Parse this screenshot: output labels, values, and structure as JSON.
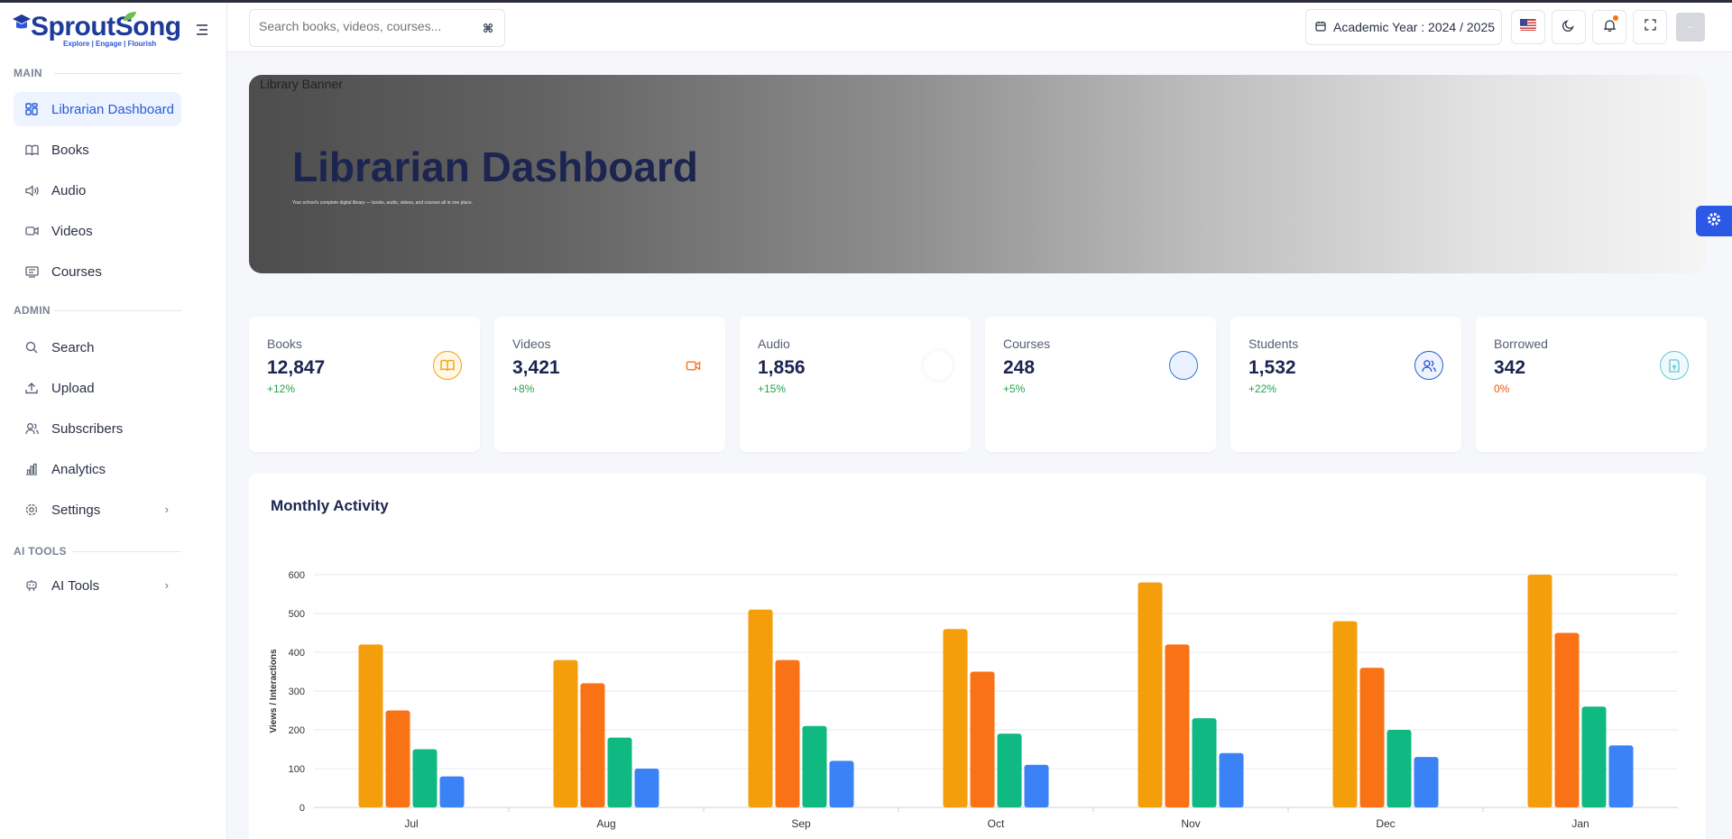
{
  "brand": {
    "name": "SproutSong",
    "tagline": "Explore | Engage | Flourish"
  },
  "sidebar": {
    "sections": [
      {
        "label": "MAIN"
      },
      {
        "label": "ADMIN"
      },
      {
        "label": "AI TOOLS"
      }
    ],
    "items": [
      {
        "label": "Librarian Dashboard",
        "icon": "dashboard-icon"
      },
      {
        "label": "Books",
        "icon": "book-icon"
      },
      {
        "label": "Audio",
        "icon": "audio-icon"
      },
      {
        "label": "Videos",
        "icon": "video-icon"
      },
      {
        "label": "Courses",
        "icon": "courses-icon"
      },
      {
        "label": "Search",
        "icon": "search-icon"
      },
      {
        "label": "Upload",
        "icon": "upload-icon"
      },
      {
        "label": "Subscribers",
        "icon": "users-icon"
      },
      {
        "label": "Analytics",
        "icon": "analytics-icon"
      },
      {
        "label": "Settings",
        "icon": "settings-icon"
      },
      {
        "label": "AI Tools",
        "icon": "robot-icon"
      }
    ]
  },
  "topbar": {
    "search_placeholder": "Search books, videos, courses...",
    "search_shortcut": "⌘",
    "academic_year": "Academic Year : 2024 / 2025",
    "avatar_text": "--"
  },
  "banner": {
    "alt_text": "Library Banner",
    "title": "Librarian Dashboard",
    "subtitle": "Your school's complete digital library — books, audio, videos, and courses all in one place."
  },
  "stats": [
    {
      "label": "Books",
      "value": "12,847",
      "change": "+12%",
      "change_color": "#22a34a",
      "icon": "book-icon",
      "accent": "#f59e0b"
    },
    {
      "label": "Videos",
      "value": "3,421",
      "change": "+8%",
      "change_color": "#22a34a",
      "icon": "video-icon",
      "accent": "#f97316"
    },
    {
      "label": "Audio",
      "value": "1,856",
      "change": "+15%",
      "change_color": "#22a34a",
      "icon": "audio-icon",
      "accent": "#e5e7eb"
    },
    {
      "label": "Courses",
      "value": "248",
      "change": "+5%",
      "change_color": "#22a34a",
      "icon": "courses-icon",
      "accent": "#3b6fd6"
    },
    {
      "label": "Students",
      "value": "1,532",
      "change": "+22%",
      "change_color": "#22a34a",
      "icon": "users-icon",
      "accent": "#2a5ad8"
    },
    {
      "label": "Borrowed",
      "value": "342",
      "change": "0%",
      "change_color": "#ea580c",
      "icon": "borrow-icon",
      "accent": "#67c6d6"
    }
  ],
  "panel": {
    "title": "Monthly Activity"
  },
  "chart_data": {
    "type": "bar",
    "title": "Monthly Activity",
    "ylabel": "Views / Interactions",
    "xlabel": "",
    "categories": [
      "Jul",
      "Aug",
      "Sep",
      "Oct",
      "Nov",
      "Dec",
      "Jan"
    ],
    "ylim": [
      0,
      600
    ],
    "yticks": [
      0,
      100,
      200,
      300,
      400,
      500,
      600
    ],
    "grid": true,
    "series": [
      {
        "values": [
          420,
          380,
          510,
          460,
          580,
          480,
          600
        ],
        "color": "#f59e0b"
      },
      {
        "values": [
          250,
          320,
          380,
          350,
          420,
          360,
          450
        ],
        "color": "#f97316"
      },
      {
        "values": [
          150,
          180,
          210,
          190,
          230,
          200,
          260
        ],
        "color": "#10b981"
      },
      {
        "values": [
          80,
          100,
          120,
          110,
          140,
          130,
          160
        ],
        "color": "#3b82f6"
      }
    ]
  }
}
